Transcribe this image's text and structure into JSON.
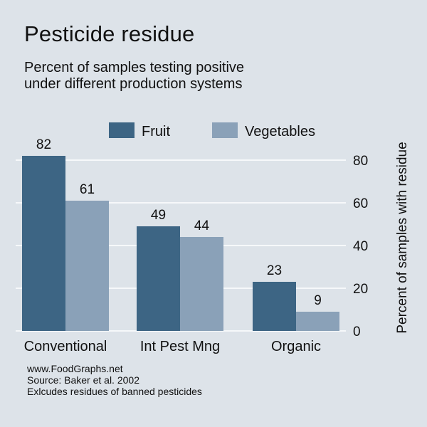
{
  "chart_data": {
    "type": "bar",
    "title": "Pesticide residue",
    "subtitle_lines": [
      "Percent of samples testing positive",
      "under different production systems"
    ],
    "categories": [
      "Conventional",
      "Int Pest Mng",
      "Organic"
    ],
    "series": [
      {
        "name": "Fruit",
        "values": [
          82,
          49,
          23
        ],
        "color": "#3d6584"
      },
      {
        "name": "Vegetables",
        "values": [
          61,
          44,
          9
        ],
        "color": "#8aa1b8"
      }
    ],
    "ylabel": "Percent of samples with residue",
    "ylim": [
      0,
      90
    ],
    "yticks": [
      0,
      20,
      40,
      60,
      80
    ],
    "y_axis_side": "right",
    "grid": true,
    "grid_color": "#ffffff",
    "legend_position": "top-center",
    "data_labels": true
  },
  "footer": {
    "lines": [
      "www.FoodGraphs.net",
      "Source: Baker et al. 2002",
      "Exlcudes residues of banned pesticides"
    ]
  }
}
